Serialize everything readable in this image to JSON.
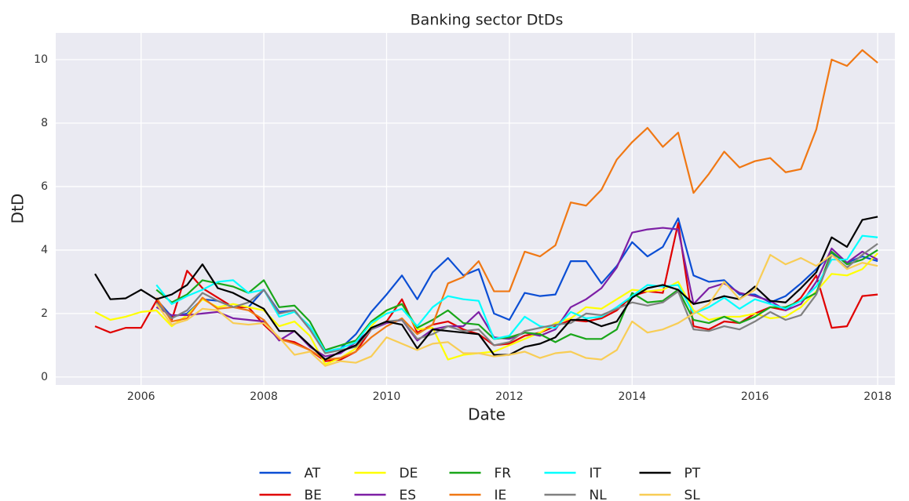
{
  "chart_data": {
    "type": "line",
    "title": "Banking sector DtDs",
    "x_label": "Date",
    "y_label": "DtD",
    "x": [
      2005.25,
      2005.5,
      2005.75,
      2006.0,
      2006.25,
      2006.5,
      2006.75,
      2007.0,
      2007.25,
      2007.5,
      2007.75,
      2008.0,
      2008.25,
      2008.5,
      2008.75,
      2009.0,
      2009.25,
      2009.5,
      2009.75,
      2010.0,
      2010.25,
      2010.5,
      2010.75,
      2011.0,
      2011.25,
      2011.5,
      2011.75,
      2012.0,
      2012.25,
      2012.5,
      2012.75,
      2013.0,
      2013.25,
      2013.5,
      2013.75,
      2014.0,
      2014.25,
      2014.5,
      2014.75,
      2015.0,
      2015.25,
      2015.5,
      2015.75,
      2016.0,
      2016.25,
      2016.5,
      2016.75,
      2017.0,
      2017.25,
      2017.5,
      2017.75,
      2018.0
    ],
    "xlim": [
      2004.61,
      2018.28
    ],
    "xticks": [
      2006,
      2008,
      2010,
      2012,
      2014,
      2016,
      2018
    ],
    "ylim": [
      -0.25,
      10.84
    ],
    "yticks": [
      0,
      2,
      4,
      6,
      8,
      10
    ],
    "grid": true,
    "legend": "below",
    "series": [
      {
        "name": "AT",
        "color": "#0b4ed4",
        "values": [
          null,
          null,
          null,
          null,
          2.45,
          1.9,
          2.0,
          2.45,
          2.4,
          2.2,
          2.2,
          2.75,
          2.05,
          2.1,
          1.5,
          0.8,
          0.9,
          1.35,
          2.05,
          2.6,
          3.2,
          2.45,
          3.3,
          3.75,
          3.2,
          3.4,
          2.0,
          1.8,
          2.65,
          2.55,
          2.6,
          3.65,
          3.65,
          2.95,
          3.5,
          4.25,
          3.8,
          4.1,
          5.0,
          3.2,
          3.0,
          3.05,
          2.6,
          2.6,
          2.35,
          2.55,
          2.95,
          3.4,
          3.9,
          3.6,
          3.8,
          3.65
        ]
      },
      {
        "name": "BE",
        "color": "#e00000",
        "values": [
          1.6,
          1.4,
          1.55,
          1.55,
          2.4,
          1.8,
          3.35,
          2.8,
          2.5,
          2.2,
          2.2,
          1.65,
          1.2,
          1.1,
          0.85,
          0.5,
          0.55,
          0.8,
          1.5,
          1.75,
          2.45,
          1.4,
          1.65,
          1.75,
          1.5,
          1.35,
          1.0,
          1.05,
          1.3,
          1.4,
          1.6,
          1.8,
          1.75,
          1.85,
          2.1,
          2.55,
          2.7,
          2.65,
          4.85,
          1.6,
          1.5,
          1.75,
          1.7,
          2.0,
          2.2,
          2.1,
          2.5,
          3.2,
          1.55,
          1.6,
          2.55,
          2.6
        ]
      },
      {
        "name": "DE",
        "color": "#ffff00",
        "values": [
          2.05,
          1.8,
          1.9,
          2.05,
          2.1,
          1.6,
          1.95,
          2.45,
          2.2,
          2.3,
          2.2,
          2.1,
          1.6,
          1.75,
          1.3,
          0.4,
          0.6,
          0.9,
          1.6,
          2.1,
          2.3,
          1.5,
          1.55,
          0.55,
          0.7,
          0.75,
          0.8,
          1.0,
          1.2,
          1.4,
          1.7,
          1.85,
          2.2,
          2.15,
          2.45,
          2.75,
          2.7,
          2.75,
          3.0,
          2.1,
          1.8,
          1.9,
          1.9,
          2.0,
          1.85,
          1.9,
          2.2,
          2.7,
          3.25,
          3.2,
          3.4,
          3.9
        ]
      },
      {
        "name": "ES",
        "color": "#7d1fa5",
        "values": [
          null,
          null,
          null,
          null,
          2.2,
          1.95,
          1.95,
          2.0,
          2.05,
          1.85,
          1.8,
          1.75,
          1.15,
          1.45,
          0.95,
          0.65,
          0.75,
          1.1,
          1.5,
          1.7,
          1.8,
          1.15,
          1.5,
          1.6,
          1.6,
          2.05,
          1.25,
          1.2,
          1.4,
          1.3,
          1.5,
          2.2,
          2.45,
          2.8,
          3.45,
          4.55,
          4.65,
          4.7,
          4.65,
          2.3,
          2.8,
          2.95,
          2.65,
          2.55,
          2.4,
          2.1,
          2.3,
          3.0,
          4.05,
          3.6,
          3.95,
          3.7
        ]
      },
      {
        "name": "FR",
        "color": "#19a619",
        "values": [
          null,
          null,
          null,
          null,
          2.75,
          2.35,
          2.6,
          3.05,
          2.95,
          2.85,
          2.65,
          3.05,
          2.2,
          2.25,
          1.75,
          0.85,
          1.0,
          1.15,
          1.75,
          2.1,
          2.3,
          1.55,
          1.8,
          2.1,
          1.7,
          1.65,
          1.2,
          1.25,
          1.4,
          1.35,
          1.1,
          1.35,
          1.2,
          1.2,
          1.5,
          2.65,
          2.35,
          2.4,
          2.75,
          1.8,
          1.7,
          1.9,
          1.7,
          1.9,
          2.2,
          2.2,
          2.4,
          2.65,
          3.95,
          3.55,
          3.7,
          4.0
        ]
      },
      {
        "name": "IE",
        "color": "#f07814",
        "values": [
          null,
          null,
          null,
          null,
          2.5,
          1.75,
          1.85,
          2.5,
          2.15,
          2.2,
          2.1,
          1.8,
          1.2,
          1.05,
          0.85,
          0.55,
          0.6,
          0.8,
          1.25,
          1.6,
          1.85,
          1.35,
          1.65,
          2.95,
          3.15,
          3.65,
          2.7,
          2.7,
          3.95,
          3.8,
          4.15,
          5.5,
          5.4,
          5.9,
          6.85,
          7.4,
          7.85,
          7.25,
          7.7,
          5.8,
          6.4,
          7.1,
          6.6,
          6.8,
          6.9,
          6.45,
          6.55,
          7.8,
          10.0,
          9.8,
          10.3,
          9.9
        ]
      },
      {
        "name": "IT",
        "color": "#00ffff",
        "values": [
          null,
          null,
          null,
          null,
          2.9,
          2.3,
          2.55,
          2.75,
          3.0,
          3.05,
          2.65,
          2.75,
          1.9,
          2.05,
          1.6,
          0.8,
          0.9,
          1.1,
          1.7,
          2.0,
          2.15,
          1.6,
          2.2,
          2.55,
          2.45,
          2.4,
          1.2,
          1.3,
          1.9,
          1.6,
          1.55,
          2.05,
          1.85,
          1.9,
          2.2,
          2.55,
          2.9,
          2.85,
          2.9,
          2.0,
          2.2,
          2.5,
          2.15,
          2.45,
          2.3,
          2.15,
          2.4,
          2.85,
          3.7,
          3.7,
          4.45,
          4.4
        ]
      },
      {
        "name": "NL",
        "color": "#808080",
        "values": [
          null,
          null,
          null,
          null,
          2.35,
          1.85,
          2.1,
          2.65,
          2.4,
          2.2,
          2.35,
          2.75,
          2.0,
          2.1,
          1.5,
          0.75,
          0.85,
          0.95,
          1.5,
          1.75,
          1.8,
          1.2,
          1.35,
          1.6,
          1.45,
          1.5,
          1.0,
          1.1,
          1.45,
          1.55,
          1.65,
          1.7,
          2.0,
          1.95,
          2.15,
          2.35,
          2.25,
          2.35,
          2.7,
          1.5,
          1.45,
          1.6,
          1.5,
          1.75,
          2.05,
          1.8,
          1.95,
          2.6,
          3.85,
          3.45,
          3.85,
          4.2
        ]
      },
      {
        "name": "PT",
        "color": "#000000",
        "values": [
          3.25,
          2.45,
          2.48,
          2.75,
          2.45,
          2.6,
          2.9,
          3.55,
          2.8,
          2.65,
          2.4,
          2.15,
          1.45,
          1.45,
          1.0,
          0.55,
          0.8,
          1.0,
          1.55,
          1.75,
          1.65,
          0.9,
          1.5,
          1.45,
          1.4,
          1.35,
          0.7,
          0.7,
          0.95,
          1.05,
          1.25,
          1.8,
          1.8,
          1.6,
          1.75,
          2.5,
          2.8,
          2.9,
          2.75,
          2.3,
          2.4,
          2.55,
          2.45,
          2.85,
          2.4,
          2.35,
          2.8,
          3.3,
          4.4,
          4.1,
          4.95,
          5.05
        ]
      },
      {
        "name": "SL",
        "color": "#f8cd55",
        "values": [
          null,
          null,
          null,
          null,
          2.3,
          1.65,
          1.8,
          2.15,
          2.1,
          1.7,
          1.65,
          1.7,
          1.25,
          0.7,
          0.8,
          0.35,
          0.5,
          0.45,
          0.65,
          1.25,
          1.05,
          0.85,
          1.05,
          1.1,
          0.75,
          0.75,
          0.65,
          0.7,
          0.8,
          0.6,
          0.75,
          0.8,
          0.6,
          0.55,
          0.85,
          1.75,
          1.4,
          1.5,
          1.7,
          2.0,
          2.3,
          3.0,
          2.45,
          2.75,
          3.85,
          3.55,
          3.75,
          3.5,
          3.85,
          3.4,
          3.6,
          3.5
        ]
      }
    ]
  }
}
